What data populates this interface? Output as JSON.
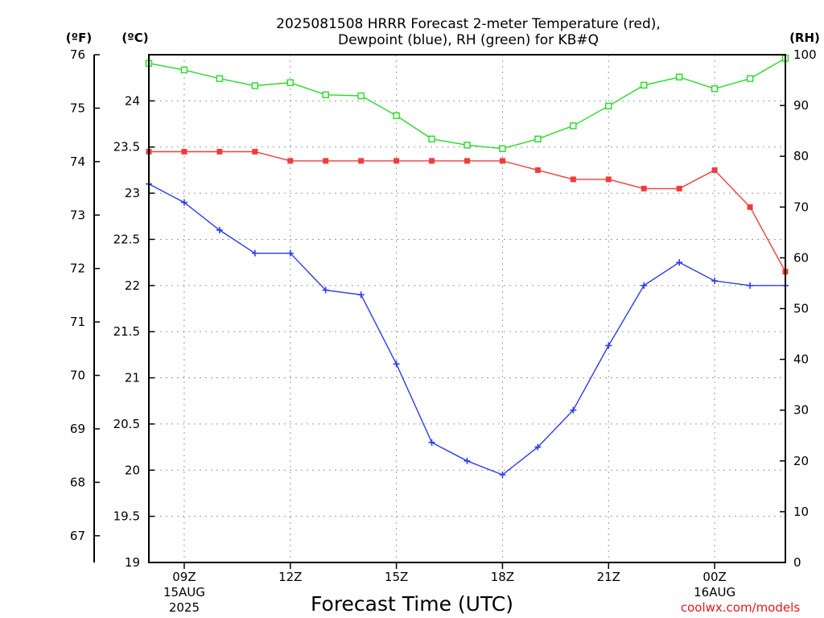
{
  "chart_data": {
    "type": "line",
    "title_line1": "2025081508 HRRR Forecast 2-meter Temperature (red),",
    "title_line2": "Dewpoint (blue), RH (green) for KB#Q",
    "xlabel": "Forecast Time (UTC)",
    "credit": "coolwx.com/models",
    "unit_labels": {
      "fahrenheit": "(ºF)",
      "celsius": "(ºC)",
      "rh": "(RH)"
    },
    "x_hours": [
      8,
      9,
      10,
      11,
      12,
      13,
      14,
      15,
      16,
      17,
      18,
      19,
      20,
      21,
      22,
      23,
      24,
      25,
      26
    ],
    "x_range": [
      8,
      26
    ],
    "x_ticks": [
      {
        "hour": 9,
        "label": "09Z",
        "date": "15AUG",
        "year": "2025"
      },
      {
        "hour": 12,
        "label": "12Z",
        "date": "",
        "year": ""
      },
      {
        "hour": 15,
        "label": "15Z",
        "date": "",
        "year": ""
      },
      {
        "hour": 18,
        "label": "18Z",
        "date": "",
        "year": ""
      },
      {
        "hour": 21,
        "label": "21Z",
        "date": "",
        "year": ""
      },
      {
        "hour": 24,
        "label": "00Z",
        "date": "16AUG",
        "year": ""
      }
    ],
    "left_axis_f": {
      "range": [
        66.5,
        76
      ],
      "ticks": [
        76,
        75,
        74,
        73,
        72,
        71,
        70,
        69,
        68,
        67
      ]
    },
    "left_axis_c": {
      "range": [
        19,
        24.5
      ],
      "ticks": [
        "24",
        "23.5",
        "23",
        "22.5",
        "22",
        "21.5",
        "21",
        "20.5",
        "20",
        "19.5",
        "19"
      ]
    },
    "right_axis_rh": {
      "range": [
        0,
        100
      ],
      "ticks": [
        100,
        90,
        80,
        70,
        60,
        50,
        40,
        30,
        20,
        10,
        0
      ]
    },
    "series": [
      {
        "name": "Temperature",
        "axis": "celsius",
        "color": "#f03c3c",
        "marker": "filled-square",
        "values": [
          23.45,
          23.45,
          23.45,
          23.45,
          23.35,
          23.35,
          23.35,
          23.35,
          23.35,
          23.35,
          23.35,
          23.25,
          23.15,
          23.15,
          23.05,
          23.05,
          23.25,
          22.85,
          22.15
        ]
      },
      {
        "name": "Dewpoint",
        "axis": "celsius",
        "color": "#2b3ee6",
        "marker": "plus",
        "values": [
          23.1,
          22.9,
          22.6,
          22.35,
          22.35,
          21.95,
          21.9,
          21.15,
          20.3,
          20.1,
          19.95,
          20.25,
          20.65,
          21.35,
          22.0,
          22.25,
          22.05,
          22.0,
          22.0
        ]
      },
      {
        "name": "RH",
        "axis": "rh",
        "color": "#27d927",
        "marker": "open-square",
        "values": [
          98.3,
          97.0,
          95.3,
          93.9,
          94.5,
          92.1,
          91.9,
          88.0,
          83.4,
          82.2,
          81.5,
          83.4,
          86.0,
          89.9,
          94.0,
          95.6,
          93.3,
          95.3,
          99.3
        ]
      }
    ]
  }
}
